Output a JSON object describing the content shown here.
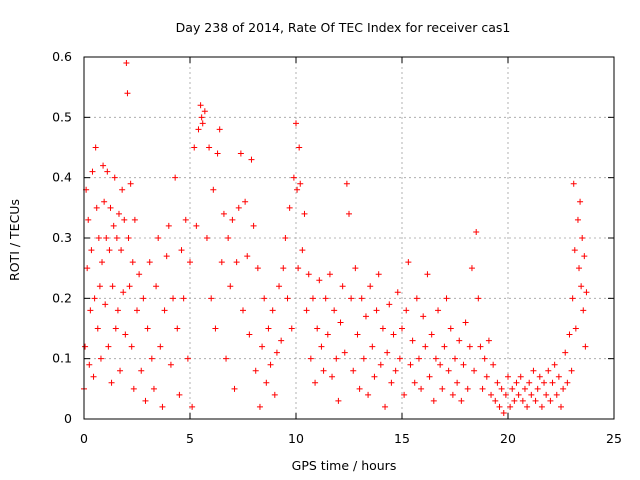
{
  "chart_data": {
    "type": "scatter",
    "title": "Day 238 of 2014, Rate Of TEC Index for receiver cas1",
    "xlabel": "GPS time / hours",
    "ylabel": "ROTI / TECUs",
    "xlim": [
      0,
      25
    ],
    "ylim": [
      0,
      0.6
    ],
    "xticks": [
      0,
      5,
      10,
      15,
      20,
      25
    ],
    "yticks": [
      0,
      0.1,
      0.2,
      0.3,
      0.4,
      0.5,
      0.6
    ],
    "xtick_labels": [
      "0",
      "5",
      "10",
      "15",
      "20",
      "25"
    ],
    "ytick_labels": [
      "0",
      "0.1",
      "0.2",
      "0.3",
      "0.4",
      "0.5",
      "0.6"
    ],
    "grid": true,
    "marker": "+",
    "color": "#ff0000",
    "series": [
      {
        "name": "ROTI",
        "points": [
          [
            0.0,
            0.05
          ],
          [
            0.05,
            0.12
          ],
          [
            0.1,
            0.38
          ],
          [
            0.15,
            0.25
          ],
          [
            0.2,
            0.33
          ],
          [
            0.25,
            0.09
          ],
          [
            0.3,
            0.18
          ],
          [
            0.35,
            0.28
          ],
          [
            0.4,
            0.41
          ],
          [
            0.45,
            0.07
          ],
          [
            0.5,
            0.2
          ],
          [
            0.55,
            0.45
          ],
          [
            0.6,
            0.35
          ],
          [
            0.65,
            0.15
          ],
          [
            0.7,
            0.3
          ],
          [
            0.75,
            0.22
          ],
          [
            0.8,
            0.1
          ],
          [
            0.85,
            0.26
          ],
          [
            0.9,
            0.42
          ],
          [
            0.95,
            0.36
          ],
          [
            1.0,
            0.19
          ],
          [
            1.05,
            0.3
          ],
          [
            1.1,
            0.41
          ],
          [
            1.15,
            0.12
          ],
          [
            1.2,
            0.28
          ],
          [
            1.25,
            0.35
          ],
          [
            1.3,
            0.06
          ],
          [
            1.35,
            0.22
          ],
          [
            1.4,
            0.32
          ],
          [
            1.45,
            0.4
          ],
          [
            1.5,
            0.15
          ],
          [
            1.55,
            0.3
          ],
          [
            1.6,
            0.18
          ],
          [
            1.65,
            0.34
          ],
          [
            1.7,
            0.08
          ],
          [
            1.75,
            0.28
          ],
          [
            1.8,
            0.38
          ],
          [
            1.85,
            0.21
          ],
          [
            1.9,
            0.33
          ],
          [
            1.95,
            0.14
          ],
          [
            2.0,
            0.59
          ],
          [
            2.05,
            0.54
          ],
          [
            2.1,
            0.3
          ],
          [
            2.15,
            0.22
          ],
          [
            2.2,
            0.39
          ],
          [
            2.25,
            0.12
          ],
          [
            2.3,
            0.26
          ],
          [
            2.35,
            0.05
          ],
          [
            2.4,
            0.33
          ],
          [
            2.5,
            0.18
          ],
          [
            2.6,
            0.24
          ],
          [
            2.7,
            0.08
          ],
          [
            2.8,
            0.2
          ],
          [
            2.9,
            0.03
          ],
          [
            3.0,
            0.15
          ],
          [
            3.1,
            0.26
          ],
          [
            3.2,
            0.1
          ],
          [
            3.3,
            0.05
          ],
          [
            3.4,
            0.22
          ],
          [
            3.5,
            0.3
          ],
          [
            3.6,
            0.12
          ],
          [
            3.7,
            0.02
          ],
          [
            3.8,
            0.18
          ],
          [
            3.9,
            0.27
          ],
          [
            4.0,
            0.32
          ],
          [
            4.1,
            0.09
          ],
          [
            4.2,
            0.2
          ],
          [
            4.3,
            0.4
          ],
          [
            4.4,
            0.15
          ],
          [
            4.5,
            0.04
          ],
          [
            4.6,
            0.28
          ],
          [
            4.7,
            0.2
          ],
          [
            4.8,
            0.33
          ],
          [
            4.9,
            0.1
          ],
          [
            5.0,
            0.26
          ],
          [
            5.1,
            0.02
          ],
          [
            5.2,
            0.45
          ],
          [
            5.3,
            0.32
          ],
          [
            5.4,
            0.48
          ],
          [
            5.5,
            0.52
          ],
          [
            5.55,
            0.5
          ],
          [
            5.6,
            0.49
          ],
          [
            5.7,
            0.51
          ],
          [
            5.8,
            0.3
          ],
          [
            5.9,
            0.45
          ],
          [
            6.0,
            0.2
          ],
          [
            6.1,
            0.38
          ],
          [
            6.2,
            0.15
          ],
          [
            6.3,
            0.44
          ],
          [
            6.4,
            0.48
          ],
          [
            6.5,
            0.26
          ],
          [
            6.6,
            0.34
          ],
          [
            6.7,
            0.1
          ],
          [
            6.8,
            0.3
          ],
          [
            6.9,
            0.22
          ],
          [
            7.0,
            0.33
          ],
          [
            7.1,
            0.05
          ],
          [
            7.2,
            0.26
          ],
          [
            7.3,
            0.35
          ],
          [
            7.4,
            0.44
          ],
          [
            7.5,
            0.18
          ],
          [
            7.6,
            0.36
          ],
          [
            7.7,
            0.27
          ],
          [
            7.8,
            0.14
          ],
          [
            7.9,
            0.43
          ],
          [
            8.0,
            0.32
          ],
          [
            8.1,
            0.08
          ],
          [
            8.2,
            0.25
          ],
          [
            8.3,
            0.02
          ],
          [
            8.4,
            0.12
          ],
          [
            8.5,
            0.2
          ],
          [
            8.6,
            0.06
          ],
          [
            8.7,
            0.15
          ],
          [
            8.8,
            0.09
          ],
          [
            8.9,
            0.18
          ],
          [
            9.0,
            0.04
          ],
          [
            9.1,
            0.11
          ],
          [
            9.2,
            0.22
          ],
          [
            9.3,
            0.13
          ],
          [
            9.4,
            0.25
          ],
          [
            9.5,
            0.3
          ],
          [
            9.6,
            0.2
          ],
          [
            9.7,
            0.35
          ],
          [
            9.8,
            0.15
          ],
          [
            9.9,
            0.4
          ],
          [
            10.0,
            0.49
          ],
          [
            10.05,
            0.38
          ],
          [
            10.1,
            0.25
          ],
          [
            10.15,
            0.45
          ],
          [
            10.2,
            0.39
          ],
          [
            10.3,
            0.28
          ],
          [
            10.4,
            0.34
          ],
          [
            10.5,
            0.18
          ],
          [
            10.6,
            0.24
          ],
          [
            10.7,
            0.1
          ],
          [
            10.8,
            0.2
          ],
          [
            10.9,
            0.06
          ],
          [
            11.0,
            0.15
          ],
          [
            11.1,
            0.23
          ],
          [
            11.2,
            0.12
          ],
          [
            11.3,
            0.08
          ],
          [
            11.4,
            0.2
          ],
          [
            11.5,
            0.14
          ],
          [
            11.6,
            0.24
          ],
          [
            11.7,
            0.07
          ],
          [
            11.8,
            0.18
          ],
          [
            11.9,
            0.1
          ],
          [
            12.0,
            0.03
          ],
          [
            12.1,
            0.16
          ],
          [
            12.2,
            0.22
          ],
          [
            12.3,
            0.11
          ],
          [
            12.4,
            0.39
          ],
          [
            12.5,
            0.34
          ],
          [
            12.6,
            0.2
          ],
          [
            12.7,
            0.08
          ],
          [
            12.8,
            0.25
          ],
          [
            12.9,
            0.14
          ],
          [
            13.0,
            0.05
          ],
          [
            13.1,
            0.2
          ],
          [
            13.2,
            0.1
          ],
          [
            13.3,
            0.17
          ],
          [
            13.4,
            0.04
          ],
          [
            13.5,
            0.22
          ],
          [
            13.6,
            0.12
          ],
          [
            13.7,
            0.07
          ],
          [
            13.8,
            0.18
          ],
          [
            13.9,
            0.24
          ],
          [
            14.0,
            0.09
          ],
          [
            14.1,
            0.15
          ],
          [
            14.2,
            0.02
          ],
          [
            14.3,
            0.11
          ],
          [
            14.4,
            0.19
          ],
          [
            14.5,
            0.06
          ],
          [
            14.6,
            0.14
          ],
          [
            14.7,
            0.08
          ],
          [
            14.8,
            0.21
          ],
          [
            14.9,
            0.1
          ],
          [
            15.0,
            0.15
          ],
          [
            15.1,
            0.04
          ],
          [
            15.2,
            0.18
          ],
          [
            15.3,
            0.26
          ],
          [
            15.4,
            0.09
          ],
          [
            15.5,
            0.13
          ],
          [
            15.6,
            0.06
          ],
          [
            15.7,
            0.2
          ],
          [
            15.8,
            0.1
          ],
          [
            15.9,
            0.05
          ],
          [
            16.0,
            0.17
          ],
          [
            16.1,
            0.12
          ],
          [
            16.2,
            0.24
          ],
          [
            16.3,
            0.07
          ],
          [
            16.4,
            0.14
          ],
          [
            16.5,
            0.03
          ],
          [
            16.6,
            0.1
          ],
          [
            16.7,
            0.18
          ],
          [
            16.8,
            0.09
          ],
          [
            16.9,
            0.05
          ],
          [
            17.0,
            0.12
          ],
          [
            17.1,
            0.2
          ],
          [
            17.2,
            0.08
          ],
          [
            17.3,
            0.15
          ],
          [
            17.4,
            0.04
          ],
          [
            17.5,
            0.1
          ],
          [
            17.6,
            0.06
          ],
          [
            17.7,
            0.13
          ],
          [
            17.8,
            0.03
          ],
          [
            17.9,
            0.09
          ],
          [
            18.0,
            0.16
          ],
          [
            18.1,
            0.05
          ],
          [
            18.2,
            0.12
          ],
          [
            18.3,
            0.25
          ],
          [
            18.4,
            0.08
          ],
          [
            18.5,
            0.31
          ],
          [
            18.6,
            0.2
          ],
          [
            18.7,
            0.12
          ],
          [
            18.8,
            0.05
          ],
          [
            18.9,
            0.1
          ],
          [
            19.0,
            0.07
          ],
          [
            19.1,
            0.13
          ],
          [
            19.2,
            0.04
          ],
          [
            19.3,
            0.09
          ],
          [
            19.4,
            0.03
          ],
          [
            19.5,
            0.06
          ],
          [
            19.6,
            0.02
          ],
          [
            19.7,
            0.05
          ],
          [
            19.8,
            0.01
          ],
          [
            19.9,
            0.04
          ],
          [
            20.0,
            0.07
          ],
          [
            20.1,
            0.02
          ],
          [
            20.2,
            0.05
          ],
          [
            20.3,
            0.03
          ],
          [
            20.4,
            0.06
          ],
          [
            20.5,
            0.04
          ],
          [
            20.6,
            0.07
          ],
          [
            20.7,
            0.03
          ],
          [
            20.8,
            0.05
          ],
          [
            20.9,
            0.02
          ],
          [
            21.0,
            0.06
          ],
          [
            21.1,
            0.04
          ],
          [
            21.2,
            0.08
          ],
          [
            21.3,
            0.03
          ],
          [
            21.4,
            0.05
          ],
          [
            21.5,
            0.07
          ],
          [
            21.6,
            0.02
          ],
          [
            21.7,
            0.06
          ],
          [
            21.8,
            0.04
          ],
          [
            21.9,
            0.08
          ],
          [
            22.0,
            0.03
          ],
          [
            22.1,
            0.06
          ],
          [
            22.2,
            0.09
          ],
          [
            22.3,
            0.04
          ],
          [
            22.4,
            0.07
          ],
          [
            22.5,
            0.02
          ],
          [
            22.6,
            0.05
          ],
          [
            22.7,
            0.11
          ],
          [
            22.8,
            0.06
          ],
          [
            22.9,
            0.14
          ],
          [
            23.0,
            0.08
          ],
          [
            23.05,
            0.2
          ],
          [
            23.1,
            0.39
          ],
          [
            23.15,
            0.28
          ],
          [
            23.2,
            0.15
          ],
          [
            23.3,
            0.33
          ],
          [
            23.35,
            0.25
          ],
          [
            23.4,
            0.36
          ],
          [
            23.45,
            0.22
          ],
          [
            23.5,
            0.3
          ],
          [
            23.55,
            0.18
          ],
          [
            23.6,
            0.27
          ],
          [
            23.65,
            0.12
          ],
          [
            23.7,
            0.21
          ]
        ]
      }
    ]
  }
}
